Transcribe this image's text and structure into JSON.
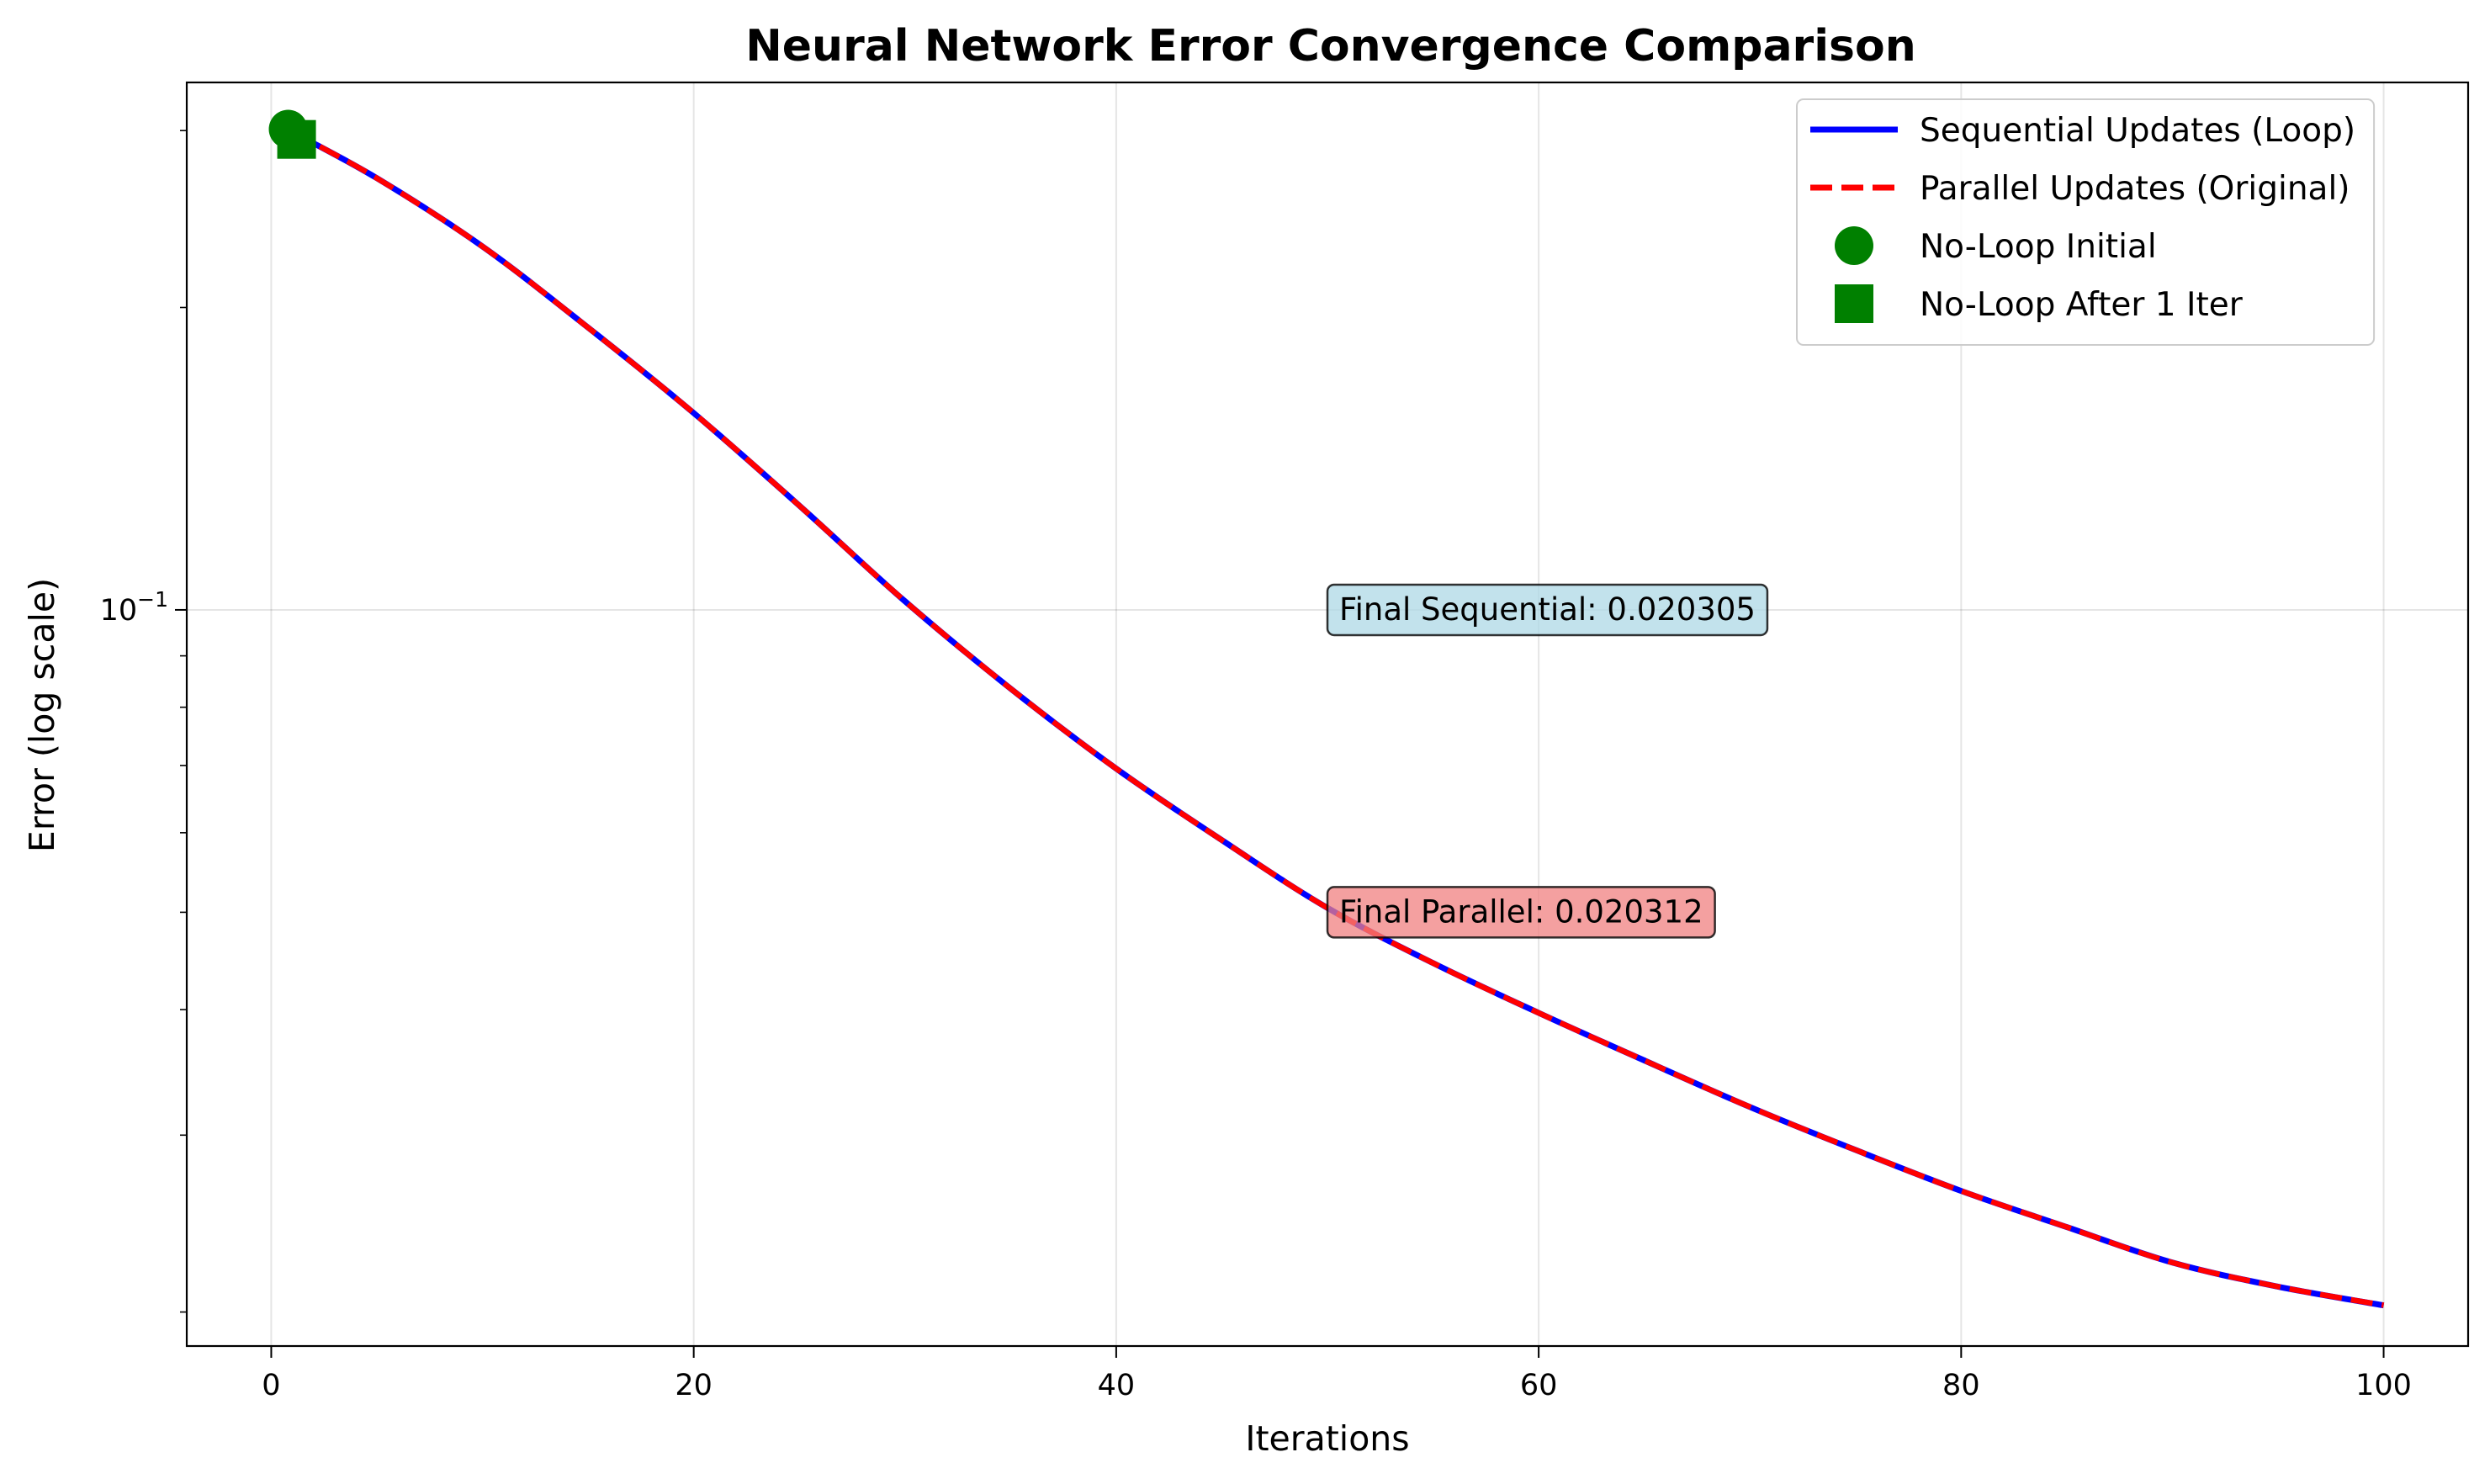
{
  "chart_data": {
    "type": "line",
    "title": "Neural Network Error Convergence Comparison",
    "xlabel": "Iterations",
    "ylabel": "Error (log scale)",
    "yscale": "log",
    "xlim": [
      -4,
      104
    ],
    "ylim": [
      0.0185,
      0.335
    ],
    "x_ticks": [
      0,
      20,
      40,
      60,
      80,
      100
    ],
    "y_major_ticks": [
      {
        "value": 0.1,
        "base": "10",
        "exponent": "−1"
      }
    ],
    "y_minor_ticks": [
      0.02,
      0.03,
      0.04,
      0.05,
      0.06,
      0.07,
      0.08,
      0.09,
      0.2,
      0.3
    ],
    "grid": true,
    "legend_position": "upper-right",
    "x": [
      1,
      5,
      10,
      15,
      20,
      25,
      30,
      35,
      40,
      45,
      50,
      55,
      60,
      65,
      70,
      75,
      80,
      85,
      90,
      95,
      100
    ],
    "series": [
      {
        "name": "Sequential Updates (Loop)",
        "color": "#0000ff",
        "style": "solid",
        "values": [
          0.299,
          0.269,
          0.23,
          0.191,
          0.157,
          0.127,
          0.102,
          0.0835,
          0.0695,
          0.059,
          0.0505,
          0.0445,
          0.0397,
          0.0356,
          0.032,
          0.029,
          0.0264,
          0.0243,
          0.0224,
          0.0212,
          0.020305
        ]
      },
      {
        "name": "Parallel Updates (Original)",
        "color": "#ff0000",
        "style": "dashed",
        "values": [
          0.299,
          0.269,
          0.23,
          0.191,
          0.157,
          0.127,
          0.102,
          0.0835,
          0.0695,
          0.059,
          0.0505,
          0.0445,
          0.0397,
          0.0356,
          0.032,
          0.029,
          0.0264,
          0.0243,
          0.0224,
          0.0212,
          0.020312
        ]
      }
    ],
    "markers": [
      {
        "name": "No-Loop Initial",
        "shape": "circle",
        "color": "#008000",
        "x": 0.8,
        "y": 0.301
      },
      {
        "name": "No-Loop After 1 Iter",
        "shape": "square",
        "color": "#008000",
        "x": 1.2,
        "y": 0.294
      }
    ],
    "annotations": [
      {
        "text": "Final Sequential: 0.020305",
        "x": 50,
        "y": 0.1,
        "bg": "#add8e6"
      },
      {
        "text": "Final Parallel: 0.020312",
        "x": 50,
        "y": 0.05,
        "bg": "#f08080"
      }
    ]
  }
}
